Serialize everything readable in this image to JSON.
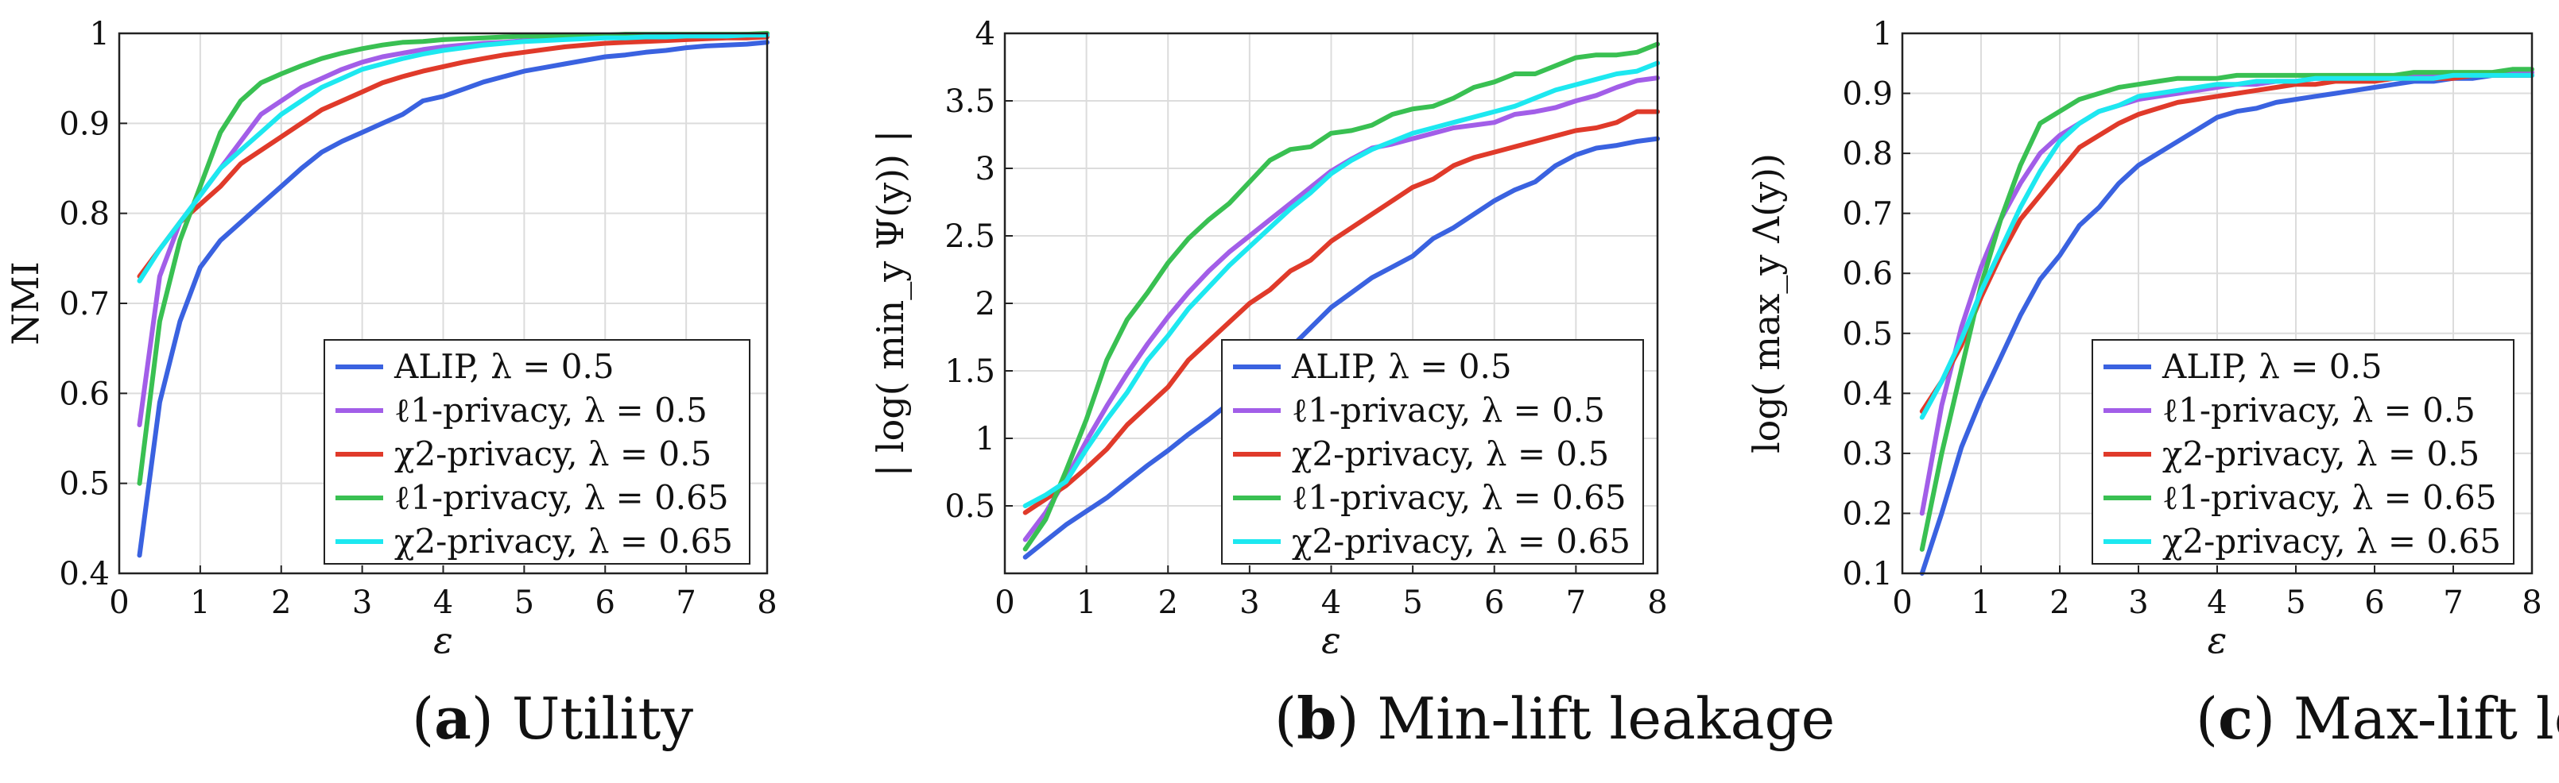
{
  "chart_data": [
    {
      "type": "line",
      "title": "",
      "caption_letter": "a",
      "caption_text": "Utility",
      "xlabel": "ε",
      "ylabel": "NMI",
      "xlim": [
        0,
        8
      ],
      "ylim": [
        0.4,
        1
      ],
      "xticks": [
        "0",
        "1",
        "2",
        "3",
        "4",
        "5",
        "6",
        "7",
        "8"
      ],
      "yticks": [
        "0.4",
        "0.5",
        "0.6",
        "0.7",
        "0.8",
        "0.9",
        "1"
      ],
      "grid": true,
      "legend_position": "bottom-right",
      "x": [
        0.25,
        0.5,
        0.75,
        1,
        1.25,
        1.5,
        1.75,
        2,
        2.25,
        2.5,
        2.75,
        3,
        3.25,
        3.5,
        3.75,
        4,
        4.25,
        4.5,
        4.75,
        5,
        5.25,
        5.5,
        5.75,
        6,
        6.25,
        6.5,
        6.75,
        7,
        7.25,
        7.5,
        7.75,
        8
      ],
      "series": [
        {
          "name": "ALIP, λ = 0.5",
          "color": "#3a62e0",
          "values": [
            0.42,
            0.59,
            0.68,
            0.74,
            0.77,
            0.79,
            0.81,
            0.83,
            0.85,
            0.868,
            0.88,
            0.89,
            0.9,
            0.91,
            0.925,
            0.93,
            0.938,
            0.946,
            0.952,
            0.958,
            0.962,
            0.966,
            0.97,
            0.974,
            0.976,
            0.979,
            0.981,
            0.984,
            0.986,
            0.987,
            0.988,
            0.99
          ]
        },
        {
          "name": "ℓ1-privacy, λ = 0.5",
          "color": "#a25ee8",
          "values": [
            0.565,
            0.73,
            0.79,
            0.82,
            0.85,
            0.88,
            0.91,
            0.925,
            0.94,
            0.95,
            0.96,
            0.968,
            0.974,
            0.978,
            0.982,
            0.985,
            0.987,
            0.989,
            0.99,
            0.992,
            0.993,
            0.994,
            0.995,
            0.996,
            0.996,
            0.997,
            0.997,
            0.998,
            0.998,
            0.998,
            0.999,
            0.999
          ]
        },
        {
          "name": "χ2-privacy, λ = 0.5",
          "color": "#e03a2a",
          "values": [
            0.73,
            0.76,
            0.79,
            0.81,
            0.83,
            0.855,
            0.87,
            0.885,
            0.9,
            0.915,
            0.925,
            0.935,
            0.945,
            0.952,
            0.958,
            0.963,
            0.968,
            0.972,
            0.976,
            0.979,
            0.982,
            0.985,
            0.987,
            0.989,
            0.99,
            0.991,
            0.992,
            0.993,
            0.994,
            0.995,
            0.995,
            0.996
          ]
        },
        {
          "name": "ℓ1-privacy, λ = 0.65",
          "color": "#39c052",
          "values": [
            0.5,
            0.68,
            0.77,
            0.83,
            0.89,
            0.925,
            0.945,
            0.955,
            0.964,
            0.972,
            0.978,
            0.983,
            0.987,
            0.99,
            0.991,
            0.993,
            0.994,
            0.995,
            0.996,
            0.997,
            0.997,
            0.998,
            0.998,
            0.998,
            0.999,
            0.999,
            0.999,
            0.999,
            0.999,
            0.999,
            0.999,
            1.0
          ]
        },
        {
          "name": "χ2-privacy, λ = 0.65",
          "color": "#1de8f0",
          "values": [
            0.725,
            0.76,
            0.79,
            0.82,
            0.85,
            0.87,
            0.89,
            0.91,
            0.925,
            0.94,
            0.95,
            0.96,
            0.966,
            0.972,
            0.977,
            0.981,
            0.984,
            0.987,
            0.989,
            0.991,
            0.992,
            0.993,
            0.994,
            0.995,
            0.995,
            0.996,
            0.996,
            0.997,
            0.997,
            0.997,
            0.998,
            0.998
          ]
        }
      ]
    },
    {
      "type": "line",
      "title": "",
      "caption_letter": "b",
      "caption_text": "Min-lift leakage",
      "xlabel": "ε",
      "ylabel": "| log( min_y Ψ(y)) |",
      "xlim": [
        0,
        8
      ],
      "ylim": [
        0,
        4
      ],
      "xticks": [
        "0",
        "1",
        "2",
        "3",
        "4",
        "5",
        "6",
        "7",
        "8"
      ],
      "yticks": [
        "0.5",
        "1",
        "1.5",
        "2",
        "2.5",
        "3",
        "3.5",
        "4"
      ],
      "grid": true,
      "legend_position": "bottom-right",
      "x": [
        0.25,
        0.5,
        0.75,
        1,
        1.25,
        1.5,
        1.75,
        2,
        2.25,
        2.5,
        2.75,
        3,
        3.25,
        3.5,
        3.75,
        4,
        4.25,
        4.5,
        4.75,
        5,
        5.25,
        5.5,
        5.75,
        6,
        6.25,
        6.5,
        6.75,
        7,
        7.25,
        7.5,
        7.75,
        8
      ],
      "series": [
        {
          "name": "ALIP, λ = 0.5",
          "color": "#3a62e0",
          "values": [
            0.12,
            0.24,
            0.36,
            0.46,
            0.56,
            0.68,
            0.8,
            0.91,
            1.03,
            1.14,
            1.26,
            1.4,
            1.53,
            1.67,
            1.82,
            1.97,
            2.08,
            2.19,
            2.27,
            2.35,
            2.48,
            2.56,
            2.66,
            2.76,
            2.84,
            2.9,
            3.02,
            3.1,
            3.15,
            3.17,
            3.2,
            3.22
          ]
        },
        {
          "name": "ℓ1-privacy, λ = 0.5",
          "color": "#a25ee8",
          "values": [
            0.25,
            0.45,
            0.7,
            0.98,
            1.24,
            1.48,
            1.7,
            1.9,
            2.08,
            2.24,
            2.38,
            2.5,
            2.62,
            2.74,
            2.86,
            2.98,
            3.07,
            3.15,
            3.18,
            3.22,
            3.26,
            3.3,
            3.32,
            3.34,
            3.4,
            3.42,
            3.45,
            3.5,
            3.54,
            3.6,
            3.65,
            3.67
          ]
        },
        {
          "name": "χ2-privacy, λ = 0.5",
          "color": "#e03a2a",
          "values": [
            0.45,
            0.55,
            0.65,
            0.78,
            0.92,
            1.1,
            1.24,
            1.38,
            1.58,
            1.72,
            1.86,
            2.0,
            2.1,
            2.24,
            2.32,
            2.46,
            2.56,
            2.66,
            2.76,
            2.86,
            2.92,
            3.02,
            3.08,
            3.12,
            3.16,
            3.2,
            3.24,
            3.28,
            3.3,
            3.34,
            3.42,
            3.42
          ]
        },
        {
          "name": "ℓ1-privacy, λ = 0.65",
          "color": "#39c052",
          "values": [
            0.18,
            0.4,
            0.76,
            1.14,
            1.58,
            1.88,
            2.08,
            2.3,
            2.48,
            2.62,
            2.74,
            2.9,
            3.06,
            3.14,
            3.16,
            3.26,
            3.28,
            3.32,
            3.4,
            3.44,
            3.46,
            3.52,
            3.6,
            3.64,
            3.7,
            3.7,
            3.76,
            3.82,
            3.84,
            3.84,
            3.86,
            3.92
          ]
        },
        {
          "name": "χ2-privacy, λ = 0.65",
          "color": "#1de8f0",
          "values": [
            0.5,
            0.58,
            0.68,
            0.92,
            1.14,
            1.34,
            1.58,
            1.76,
            1.96,
            2.12,
            2.28,
            2.42,
            2.56,
            2.7,
            2.82,
            2.96,
            3.06,
            3.14,
            3.2,
            3.26,
            3.3,
            3.34,
            3.38,
            3.42,
            3.46,
            3.52,
            3.58,
            3.62,
            3.66,
            3.7,
            3.72,
            3.78
          ]
        }
      ]
    },
    {
      "type": "line",
      "title": "",
      "caption_letter": "c",
      "caption_text": "Max-lift leakage",
      "xlabel": "ε",
      "ylabel": "log( max_y Λ(y))",
      "xlim": [
        0,
        8
      ],
      "ylim": [
        0.1,
        1
      ],
      "xticks": [
        "0",
        "1",
        "2",
        "3",
        "4",
        "5",
        "6",
        "7",
        "8"
      ],
      "yticks": [
        "0.1",
        "0.2",
        "0.3",
        "0.4",
        "0.5",
        "0.6",
        "0.7",
        "0.8",
        "0.9",
        "1"
      ],
      "grid": true,
      "legend_position": "bottom-right",
      "x": [
        0.25,
        0.5,
        0.75,
        1,
        1.25,
        1.5,
        1.75,
        2,
        2.25,
        2.5,
        2.75,
        3,
        3.25,
        3.5,
        3.75,
        4,
        4.25,
        4.5,
        4.75,
        5,
        5.25,
        5.5,
        5.75,
        6,
        6.25,
        6.5,
        6.75,
        7,
        7.25,
        7.5,
        7.75,
        8
      ],
      "series": [
        {
          "name": "ALIP, λ = 0.5",
          "color": "#3a62e0",
          "values": [
            0.1,
            0.2,
            0.31,
            0.39,
            0.46,
            0.53,
            0.59,
            0.63,
            0.68,
            0.71,
            0.75,
            0.78,
            0.8,
            0.82,
            0.84,
            0.86,
            0.87,
            0.875,
            0.885,
            0.89,
            0.895,
            0.9,
            0.905,
            0.91,
            0.915,
            0.92,
            0.92,
            0.925,
            0.925,
            0.93,
            0.93,
            0.93
          ]
        },
        {
          "name": "ℓ1-privacy, λ = 0.5",
          "color": "#a25ee8",
          "values": [
            0.2,
            0.38,
            0.51,
            0.61,
            0.69,
            0.75,
            0.8,
            0.83,
            0.85,
            0.87,
            0.88,
            0.89,
            0.895,
            0.9,
            0.905,
            0.91,
            0.915,
            0.915,
            0.92,
            0.92,
            0.925,
            0.925,
            0.925,
            0.925,
            0.93,
            0.93,
            0.93,
            0.93,
            0.93,
            0.93,
            0.935,
            0.935
          ]
        },
        {
          "name": "χ2-privacy, λ = 0.5",
          "color": "#e03a2a",
          "values": [
            0.37,
            0.42,
            0.48,
            0.56,
            0.63,
            0.69,
            0.73,
            0.77,
            0.81,
            0.83,
            0.85,
            0.865,
            0.875,
            0.885,
            0.89,
            0.895,
            0.9,
            0.905,
            0.91,
            0.915,
            0.915,
            0.92,
            0.92,
            0.92,
            0.925,
            0.925,
            0.925,
            0.925,
            0.93,
            0.93,
            0.93,
            0.93
          ]
        },
        {
          "name": "ℓ1-privacy, λ = 0.65",
          "color": "#39c052",
          "values": [
            0.14,
            0.3,
            0.44,
            0.58,
            0.69,
            0.78,
            0.85,
            0.87,
            0.89,
            0.9,
            0.91,
            0.915,
            0.92,
            0.925,
            0.925,
            0.925,
            0.93,
            0.93,
            0.93,
            0.93,
            0.93,
            0.93,
            0.93,
            0.93,
            0.93,
            0.935,
            0.935,
            0.935,
            0.935,
            0.935,
            0.94,
            0.94
          ]
        },
        {
          "name": "χ2-privacy, λ = 0.65",
          "color": "#1de8f0",
          "values": [
            0.36,
            0.42,
            0.49,
            0.57,
            0.64,
            0.71,
            0.77,
            0.82,
            0.85,
            0.87,
            0.88,
            0.895,
            0.9,
            0.905,
            0.91,
            0.915,
            0.915,
            0.92,
            0.92,
            0.92,
            0.925,
            0.925,
            0.925,
            0.925,
            0.925,
            0.925,
            0.925,
            0.93,
            0.93,
            0.93,
            0.93,
            0.93
          ]
        }
      ]
    }
  ]
}
